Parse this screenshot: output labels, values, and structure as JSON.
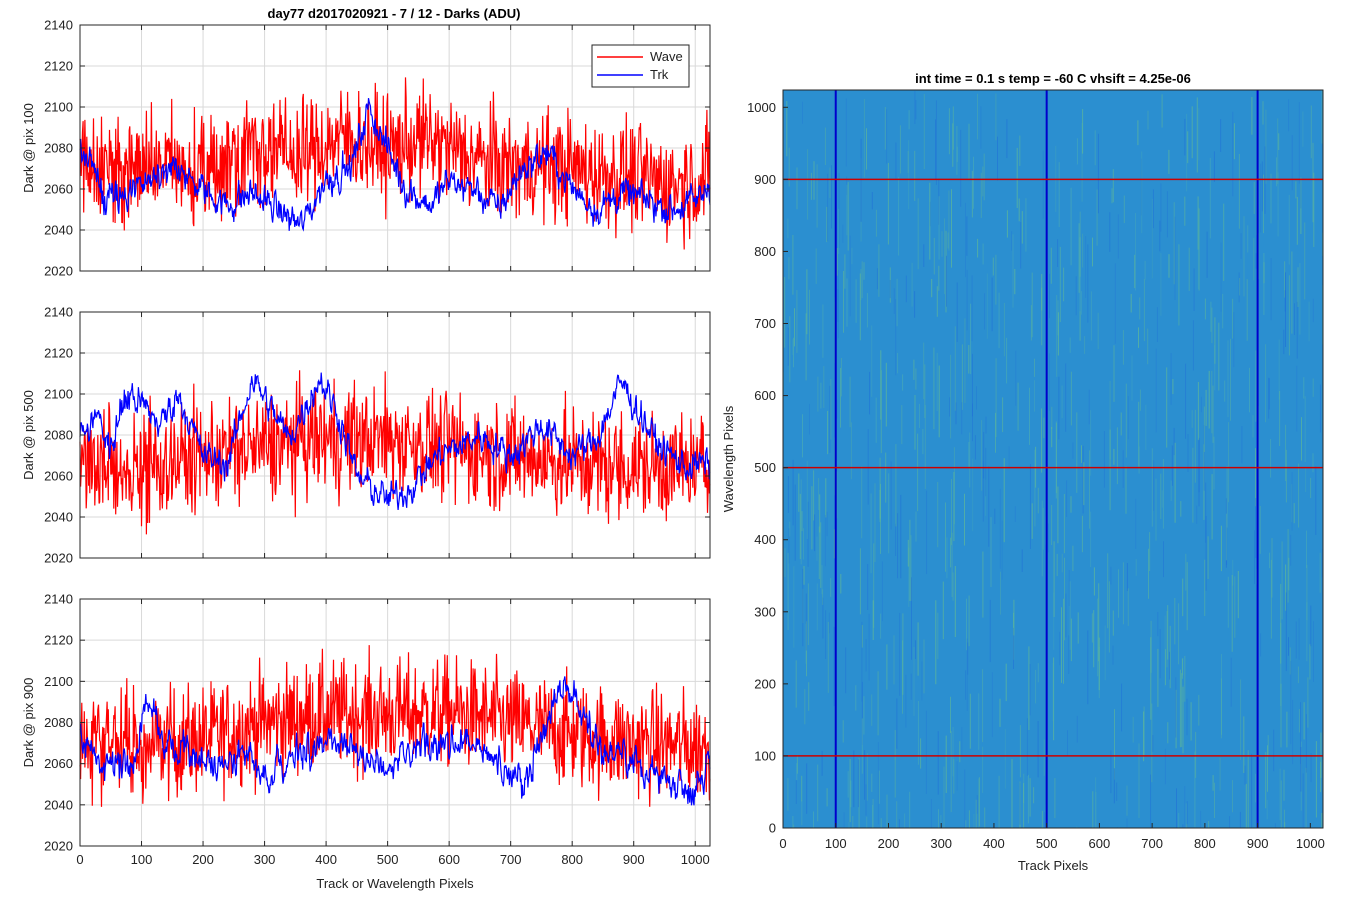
{
  "figure_title": "day77 d2017020921 - 7 / 12 - Darks (ADU)",
  "chart_data": [
    {
      "type": "line",
      "ylabel": "Dark @ pix 100",
      "xlabel": "",
      "xlim": [
        0,
        1024
      ],
      "ylim": [
        2020,
        2140
      ],
      "xticks": [
        0,
        100,
        200,
        300,
        400,
        500,
        600,
        700,
        800,
        900,
        1000
      ],
      "yticks": [
        2020,
        2040,
        2060,
        2080,
        2100,
        2120,
        2140
      ],
      "grid": true,
      "legend": "top-right",
      "series": [
        {
          "name": "Wave",
          "color": "#ff0000",
          "anchors": [
            [
              0,
              2076
            ],
            [
              60,
              2068
            ],
            [
              130,
              2072
            ],
            [
              200,
              2066
            ],
            [
              280,
              2082
            ],
            [
              350,
              2076
            ],
            [
              430,
              2085
            ],
            [
              500,
              2079
            ],
            [
              560,
              2084
            ],
            [
              640,
              2075
            ],
            [
              700,
              2070
            ],
            [
              760,
              2072
            ],
            [
              840,
              2068
            ],
            [
              900,
              2066
            ],
            [
              960,
              2062
            ],
            [
              1024,
              2066
            ]
          ]
        },
        {
          "name": "Trk",
          "color": "#0000ff",
          "anchors": [
            [
              0,
              2080
            ],
            [
              20,
              2070
            ],
            [
              40,
              2055
            ],
            [
              80,
              2056
            ],
            [
              110,
              2066
            ],
            [
              150,
              2070
            ],
            [
              200,
              2060
            ],
            [
              240,
              2052
            ],
            [
              280,
              2058
            ],
            [
              330,
              2048
            ],
            [
              360,
              2042
            ],
            [
              400,
              2065
            ],
            [
              440,
              2070
            ],
            [
              470,
              2100
            ],
            [
              490,
              2086
            ],
            [
              530,
              2060
            ],
            [
              570,
              2052
            ],
            [
              600,
              2064
            ],
            [
              640,
              2060
            ],
            [
              680,
              2050
            ],
            [
              720,
              2070
            ],
            [
              760,
              2078
            ],
            [
              800,
              2060
            ],
            [
              840,
              2050
            ],
            [
              880,
              2058
            ],
            [
              920,
              2055
            ],
            [
              960,
              2050
            ],
            [
              1000,
              2054
            ],
            [
              1024,
              2062
            ]
          ]
        }
      ]
    },
    {
      "type": "line",
      "ylabel": "Dark @ pix 500",
      "xlabel": "",
      "xlim": [
        0,
        1024
      ],
      "ylim": [
        2020,
        2140
      ],
      "xticks": [
        0,
        100,
        200,
        300,
        400,
        500,
        600,
        700,
        800,
        900,
        1000
      ],
      "yticks": [
        2020,
        2040,
        2060,
        2080,
        2100,
        2120,
        2140
      ],
      "grid": true,
      "series": [
        {
          "name": "Wave",
          "color": "#ff0000",
          "anchors": [
            [
              0,
              2066
            ],
            [
              100,
              2064
            ],
            [
              200,
              2070
            ],
            [
              300,
              2074
            ],
            [
              400,
              2078
            ],
            [
              500,
              2078
            ],
            [
              600,
              2074
            ],
            [
              700,
              2070
            ],
            [
              800,
              2066
            ],
            [
              900,
              2064
            ],
            [
              1024,
              2064
            ]
          ]
        },
        {
          "name": "Trk",
          "color": "#0000ff",
          "anchors": [
            [
              0,
              2080
            ],
            [
              30,
              2088
            ],
            [
              50,
              2075
            ],
            [
              80,
              2100
            ],
            [
              100,
              2095
            ],
            [
              130,
              2085
            ],
            [
              160,
              2100
            ],
            [
              200,
              2070
            ],
            [
              240,
              2066
            ],
            [
              280,
              2108
            ],
            [
              300,
              2098
            ],
            [
              340,
              2078
            ],
            [
              390,
              2108
            ],
            [
              420,
              2090
            ],
            [
              450,
              2060
            ],
            [
              500,
              2048
            ],
            [
              540,
              2055
            ],
            [
              580,
              2070
            ],
            [
              620,
              2075
            ],
            [
              650,
              2080
            ],
            [
              700,
              2070
            ],
            [
              750,
              2085
            ],
            [
              800,
              2070
            ],
            [
              840,
              2078
            ],
            [
              880,
              2106
            ],
            [
              900,
              2095
            ],
            [
              940,
              2075
            ],
            [
              980,
              2065
            ],
            [
              1024,
              2066
            ]
          ]
        }
      ]
    },
    {
      "type": "line",
      "ylabel": "Dark @ pix 900",
      "xlabel": "Track or Wavelength Pixels",
      "xlim": [
        0,
        1024
      ],
      "ylim": [
        2020,
        2140
      ],
      "xticks": [
        0,
        100,
        200,
        300,
        400,
        500,
        600,
        700,
        800,
        900,
        1000
      ],
      "yticks": [
        2020,
        2040,
        2060,
        2080,
        2100,
        2120,
        2140
      ],
      "grid": true,
      "series": [
        {
          "name": "Wave",
          "color": "#ff0000",
          "anchors": [
            [
              0,
              2074
            ],
            [
              100,
              2068
            ],
            [
              200,
              2072
            ],
            [
              300,
              2080
            ],
            [
              400,
              2084
            ],
            [
              500,
              2084
            ],
            [
              600,
              2085
            ],
            [
              700,
              2080
            ],
            [
              800,
              2074
            ],
            [
              900,
              2070
            ],
            [
              1024,
              2068
            ]
          ]
        },
        {
          "name": "Trk",
          "color": "#0000ff",
          "anchors": [
            [
              0,
              2074
            ],
            [
              30,
              2060
            ],
            [
              80,
              2058
            ],
            [
              110,
              2090
            ],
            [
              140,
              2068
            ],
            [
              180,
              2066
            ],
            [
              220,
              2058
            ],
            [
              260,
              2066
            ],
            [
              300,
              2052
            ],
            [
              340,
              2066
            ],
            [
              380,
              2066
            ],
            [
              410,
              2072
            ],
            [
              450,
              2066
            ],
            [
              500,
              2056
            ],
            [
              560,
              2068
            ],
            [
              620,
              2072
            ],
            [
              680,
              2060
            ],
            [
              720,
              2050
            ],
            [
              780,
              2098
            ],
            [
              810,
              2090
            ],
            [
              850,
              2066
            ],
            [
              900,
              2060
            ],
            [
              960,
              2052
            ],
            [
              1000,
              2048
            ],
            [
              1024,
              2062
            ]
          ]
        }
      ]
    },
    {
      "type": "heatmap",
      "title": "int time = 0.1 s    temp = -60 C    vhsift = 4.25e-06",
      "xlabel": "Track Pixels",
      "ylabel": "Wavelength Pixels",
      "xlim": [
        0,
        1024
      ],
      "ylim": [
        0,
        1024
      ],
      "xticks": [
        0,
        100,
        200,
        300,
        400,
        500,
        600,
        700,
        800,
        900,
        1000
      ],
      "yticks": [
        0,
        100,
        200,
        300,
        400,
        500,
        600,
        700,
        800,
        900,
        1000
      ],
      "vertical_lines": {
        "x": [
          100,
          500,
          900
        ],
        "color": "#0000cc"
      },
      "horizontal_lines": {
        "y": [
          100,
          500,
          900
        ],
        "color": "#cc0000"
      },
      "colors": {
        "base": "#2b8fd0",
        "high": "#6cc28a",
        "low": "#1f6fd8"
      }
    }
  ]
}
